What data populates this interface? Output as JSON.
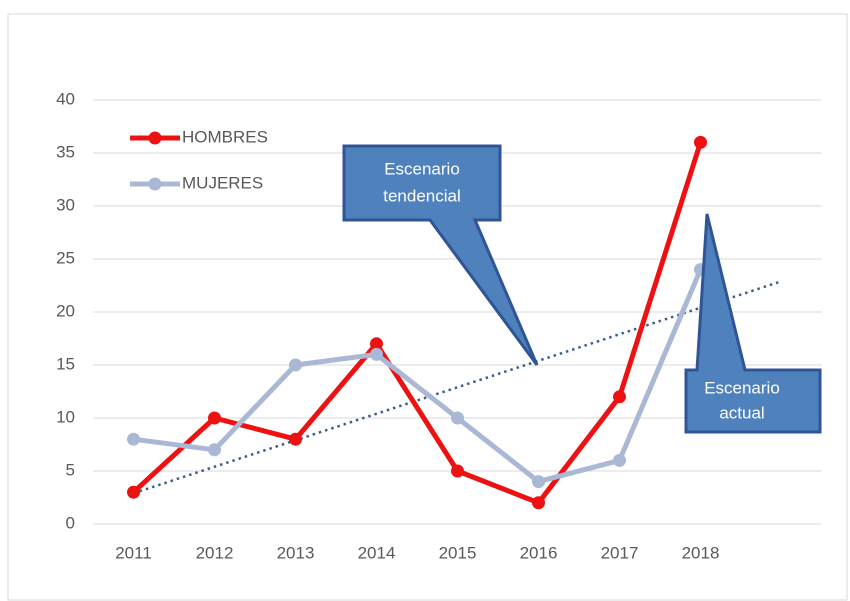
{
  "chart_data": {
    "type": "line",
    "categories": [
      "2011",
      "2012",
      "2013",
      "2014",
      "2015",
      "2016",
      "2017",
      "2018",
      null
    ],
    "series": [
      {
        "name": "HOMBRES",
        "color": "#ee1111",
        "values": [
          3,
          10,
          8,
          17,
          5,
          2,
          12,
          36,
          null
        ]
      },
      {
        "name": "MUJERES",
        "color": "#aab8d6",
        "values": [
          8,
          7,
          15,
          16,
          10,
          4,
          6,
          24,
          null
        ]
      }
    ],
    "trendline": {
      "color": "#3d5f8a",
      "values": [
        2.9,
        22.9
      ]
    },
    "ylim": [
      0,
      40
    ],
    "yticks": [
      0,
      5,
      10,
      15,
      20,
      25,
      30,
      35,
      40
    ],
    "grid": true,
    "legend": "top-left",
    "annotations": [
      {
        "lines": [
          "Escenario",
          "tendencial"
        ]
      },
      {
        "lines": [
          "Escenario",
          "actual"
        ]
      }
    ]
  }
}
